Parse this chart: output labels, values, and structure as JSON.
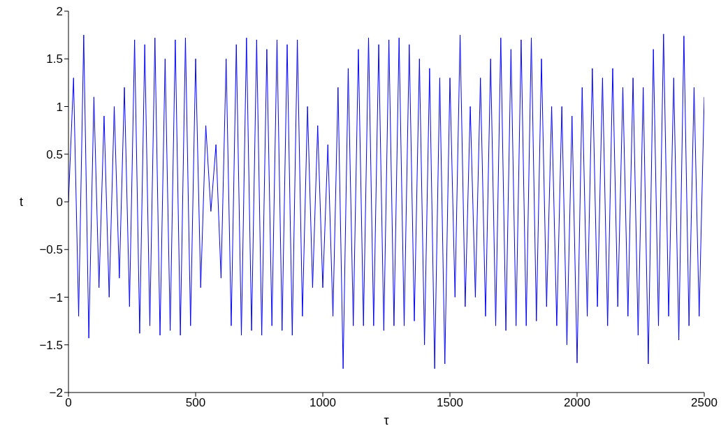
{
  "chart_data": {
    "type": "line",
    "xlabel": "τ",
    "ylabel": "t",
    "x": [
      0,
      20,
      40,
      60,
      80,
      100,
      120,
      140,
      160,
      180,
      200,
      220,
      240,
      260,
      280,
      300,
      320,
      340,
      360,
      380,
      400,
      420,
      440,
      460,
      480,
      500,
      520,
      540,
      560,
      580,
      600,
      620,
      640,
      660,
      680,
      700,
      720,
      740,
      760,
      780,
      800,
      820,
      840,
      860,
      880,
      900,
      920,
      940,
      960,
      980,
      1000,
      1020,
      1040,
      1060,
      1080,
      1100,
      1120,
      1140,
      1160,
      1180,
      1200,
      1220,
      1240,
      1260,
      1280,
      1300,
      1320,
      1340,
      1360,
      1380,
      1400,
      1420,
      1440,
      1460,
      1480,
      1500,
      1520,
      1540,
      1560,
      1580,
      1600,
      1620,
      1640,
      1660,
      1680,
      1700,
      1720,
      1740,
      1760,
      1780,
      1800,
      1820,
      1840,
      1860,
      1880,
      1900,
      1920,
      1940,
      1960,
      1980,
      2000,
      2020,
      2040,
      2060,
      2080,
      2100,
      2120,
      2140,
      2160,
      2180,
      2200,
      2220,
      2240,
      2260,
      2280,
      2300,
      2320,
      2340,
      2360,
      2380,
      2400,
      2420,
      2440,
      2460,
      2480,
      2500
    ],
    "series": [
      {
        "color": "#0000ff",
        "values": [
          0,
          1.3,
          -1.2,
          1.75,
          -1.43,
          1.1,
          -0.9,
          0.9,
          -1.0,
          1.0,
          -0.8,
          1.2,
          -1.1,
          1.7,
          -1.38,
          1.65,
          -1.3,
          1.72,
          -1.4,
          1.5,
          -1.35,
          1.7,
          -1.4,
          1.72,
          -1.3,
          1.5,
          -0.9,
          0.8,
          -0.1,
          0.6,
          -0.8,
          1.5,
          -1.3,
          1.65,
          -1.4,
          1.72,
          -1.35,
          1.7,
          -1.4,
          1.6,
          -1.3,
          1.7,
          -1.35,
          1.65,
          -1.4,
          1.7,
          -1.2,
          1.0,
          -0.9,
          0.8,
          -0.9,
          0.6,
          -1.2,
          1.2,
          -1.75,
          1.4,
          -1.3,
          1.6,
          -1.3,
          1.72,
          -1.3,
          1.65,
          -1.35,
          1.7,
          -1.3,
          1.72,
          -1.3,
          1.65,
          -1.25,
          1.5,
          -1.5,
          1.4,
          -1.75,
          1.3,
          -1.7,
          1.3,
          -1.0,
          1.75,
          -1.1,
          1.0,
          -1.0,
          1.3,
          -1.2,
          1.5,
          -1.3,
          1.72,
          -1.35,
          1.6,
          -1.3,
          1.7,
          -1.3,
          1.72,
          -1.25,
          1.5,
          -1.1,
          1.0,
          -1.3,
          1.0,
          -1.5,
          0.9,
          -1.69,
          1.2,
          -1.2,
          1.4,
          -1.1,
          1.3,
          -1.3,
          1.4,
          -1.1,
          1.2,
          -1.2,
          1.3,
          -1.4,
          1.2,
          -1.7,
          1.6,
          -1.3,
          1.76,
          -1.2,
          1.3,
          -1.45,
          1.74,
          -1.3,
          1.2,
          -1.2,
          1.1
        ]
      }
    ],
    "xlim": [
      0,
      2500
    ],
    "xticks": [
      0,
      500,
      1000,
      1500,
      2000,
      2500
    ],
    "ylim": [
      -2,
      2
    ],
    "yticks": [
      -2,
      -1.5,
      -1,
      -0.5,
      0,
      0.5,
      1,
      1.5,
      2
    ],
    "grid": false,
    "legend": false,
    "marker": "none",
    "line_style": "solid"
  }
}
